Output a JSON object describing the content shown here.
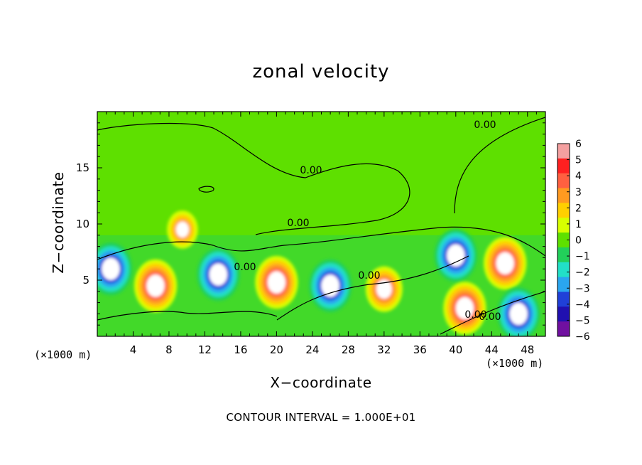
{
  "chart_data": {
    "type": "heatmap",
    "title": "zonal velocity",
    "xlabel": "X−coordinate",
    "ylabel": "Z−coordinate",
    "x_unit_label": "(×1000 m)",
    "x_ticks": [
      "4",
      "8",
      "12",
      "16",
      "20",
      "24",
      "28",
      "32",
      "36",
      "40",
      "44",
      "48"
    ],
    "y_ticks": [
      "5",
      "10",
      "15"
    ],
    "xlim": [
      0,
      50
    ],
    "ylim": [
      0,
      20
    ],
    "contour_interval_label": "CONTOUR INTERVAL = 1.000E+01",
    "contour_labels": [
      "0.00",
      "0.00",
      "0.00",
      "0.00",
      "0.00",
      "0.00",
      "0.00"
    ],
    "colorbar_levels": [
      "6",
      "5",
      "4",
      "3",
      "2",
      "1",
      "0",
      "−1",
      "−2",
      "−3",
      "−4",
      "−5",
      "−6"
    ],
    "colorbar_colors": [
      "#f4a0a0",
      "#ff2020",
      "#ff6040",
      "#ff9a20",
      "#ffd000",
      "#d8ff00",
      "#5ee000",
      "#22d05a",
      "#22e0c8",
      "#2aa6f0",
      "#2040d8",
      "#2010b0",
      "#7010a0"
    ],
    "features": [
      {
        "x": 6.5,
        "z": 4.5,
        "sign": "positive",
        "value": 6
      },
      {
        "x": 13.5,
        "z": 5.5,
        "sign": "negative",
        "value": -6
      },
      {
        "x": 20,
        "z": 4.8,
        "sign": "positive",
        "value": 6
      },
      {
        "x": 26,
        "z": 4.5,
        "sign": "negative",
        "value": -6
      },
      {
        "x": 32,
        "z": 4.2,
        "sign": "positive",
        "value": 5
      },
      {
        "x": 40,
        "z": 7.2,
        "sign": "negative",
        "value": -6
      },
      {
        "x": 45.5,
        "z": 6.5,
        "sign": "positive",
        "value": 6
      },
      {
        "x": 41,
        "z": 2.5,
        "sign": "positive",
        "value": 6
      },
      {
        "x": 47,
        "z": 2,
        "sign": "negative",
        "value": -6
      },
      {
        "x": 1.5,
        "z": 6.0,
        "sign": "negative",
        "value": -6
      },
      {
        "x": 9.5,
        "z": 9.5,
        "sign": "positive",
        "value": 4
      }
    ]
  }
}
